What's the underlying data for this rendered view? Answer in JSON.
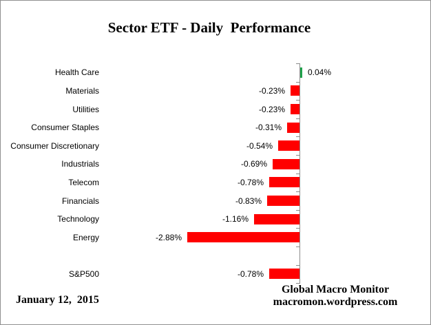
{
  "chart_data": {
    "type": "bar",
    "orientation": "horizontal",
    "title": "Sector ETF - Daily  Performance",
    "unit": "%",
    "categories": [
      "Health Care",
      "Materials",
      "Utilities",
      "Consumer Staples",
      "Consumer Discretionary",
      "Industrials",
      "Telecom",
      "Financials",
      "Technology",
      "Energy",
      "",
      "S&P500"
    ],
    "values": [
      0.04,
      -0.23,
      -0.23,
      -0.31,
      -0.54,
      -0.69,
      -0.78,
      -0.83,
      -1.16,
      -2.88,
      null,
      -0.78
    ],
    "value_labels": [
      "0.04%",
      "-0.23%",
      "-0.23%",
      "-0.31%",
      "-0.54%",
      "-0.69%",
      "-0.78%",
      "-0.83%",
      "-1.16%",
      "-2.88%",
      "",
      "-0.78%"
    ],
    "positive_color": "#1fa24b",
    "negative_color": "#ff0000",
    "axis_color": "#8a8a8a",
    "legend": "none",
    "grid": "off"
  },
  "footer": {
    "date": "January 12,  2015",
    "attribution_line1": "Global Macro Monitor",
    "attribution_line2": "macromon.wordpress.com"
  }
}
